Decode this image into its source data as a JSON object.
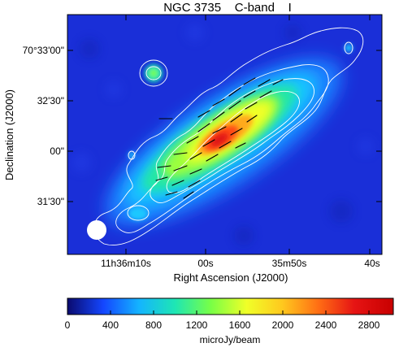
{
  "title": "NGC 3735    C-band    I",
  "axes": {
    "xlabel": "Right Ascension (J2000)",
    "ylabel": "Declination (J2000)",
    "xticks": [
      "11h36m10s",
      "00s",
      "35m50s",
      "40s"
    ],
    "yticks": [
      "70°33'00\"",
      "32'30\"",
      "00\"",
      "31'30\""
    ]
  },
  "colorbar": {
    "label": "microJy/beam",
    "ticks": [
      "0",
      "400",
      "800",
      "1200",
      "1600",
      "2000",
      "2400",
      "2800"
    ],
    "min": 0,
    "max": 3000,
    "stops": [
      "#0a0a6e",
      "#1446ff",
      "#14b4ff",
      "#1ee6b4",
      "#78ff46",
      "#f0ff28",
      "#ffc81e",
      "#ff6e14",
      "#e61414",
      "#c80000"
    ]
  },
  "colors": {
    "background": "#1a2fd8",
    "contour": "#ffffff",
    "vector": "#000000",
    "beam": "#ffffff"
  }
}
